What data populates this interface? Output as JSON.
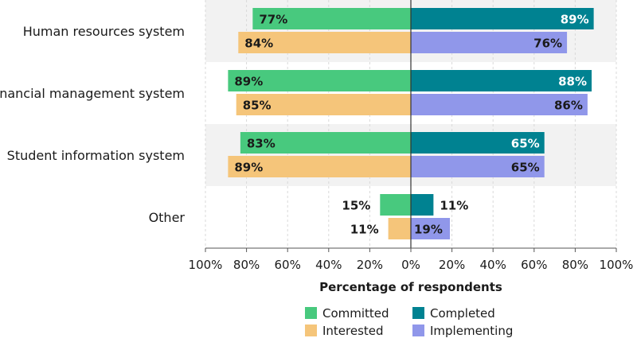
{
  "chart_data": {
    "type": "bar",
    "orientation": "horizontal-diverging",
    "categories": [
      "Human resources system",
      "Financial management system",
      "Student information system",
      "Other"
    ],
    "series": [
      {
        "name": "Committed",
        "side": "left",
        "row": "top",
        "color": "#48c97e",
        "values": [
          77,
          89,
          83,
          15
        ]
      },
      {
        "name": "Interested",
        "side": "left",
        "row": "bottom",
        "color": "#f5c57a",
        "values": [
          84,
          85,
          89,
          11
        ]
      },
      {
        "name": "Completed",
        "side": "right",
        "row": "top",
        "color": "#008291",
        "values": [
          89,
          88,
          65,
          11
        ]
      },
      {
        "name": "Implementing",
        "side": "right",
        "row": "bottom",
        "color": "#9097ea",
        "values": [
          76,
          86,
          65,
          19
        ]
      }
    ],
    "xlabel": "Percentage of respondents",
    "xlim": [
      -100,
      100
    ],
    "ticks": [
      "100%",
      "80%",
      "60%",
      "40%",
      "20%",
      "0%",
      "20%",
      "40%",
      "60%",
      "80%",
      "100%"
    ],
    "legend": [
      "Committed",
      "Completed",
      "Interested",
      "Implementing"
    ],
    "legend_position": "bottom"
  }
}
